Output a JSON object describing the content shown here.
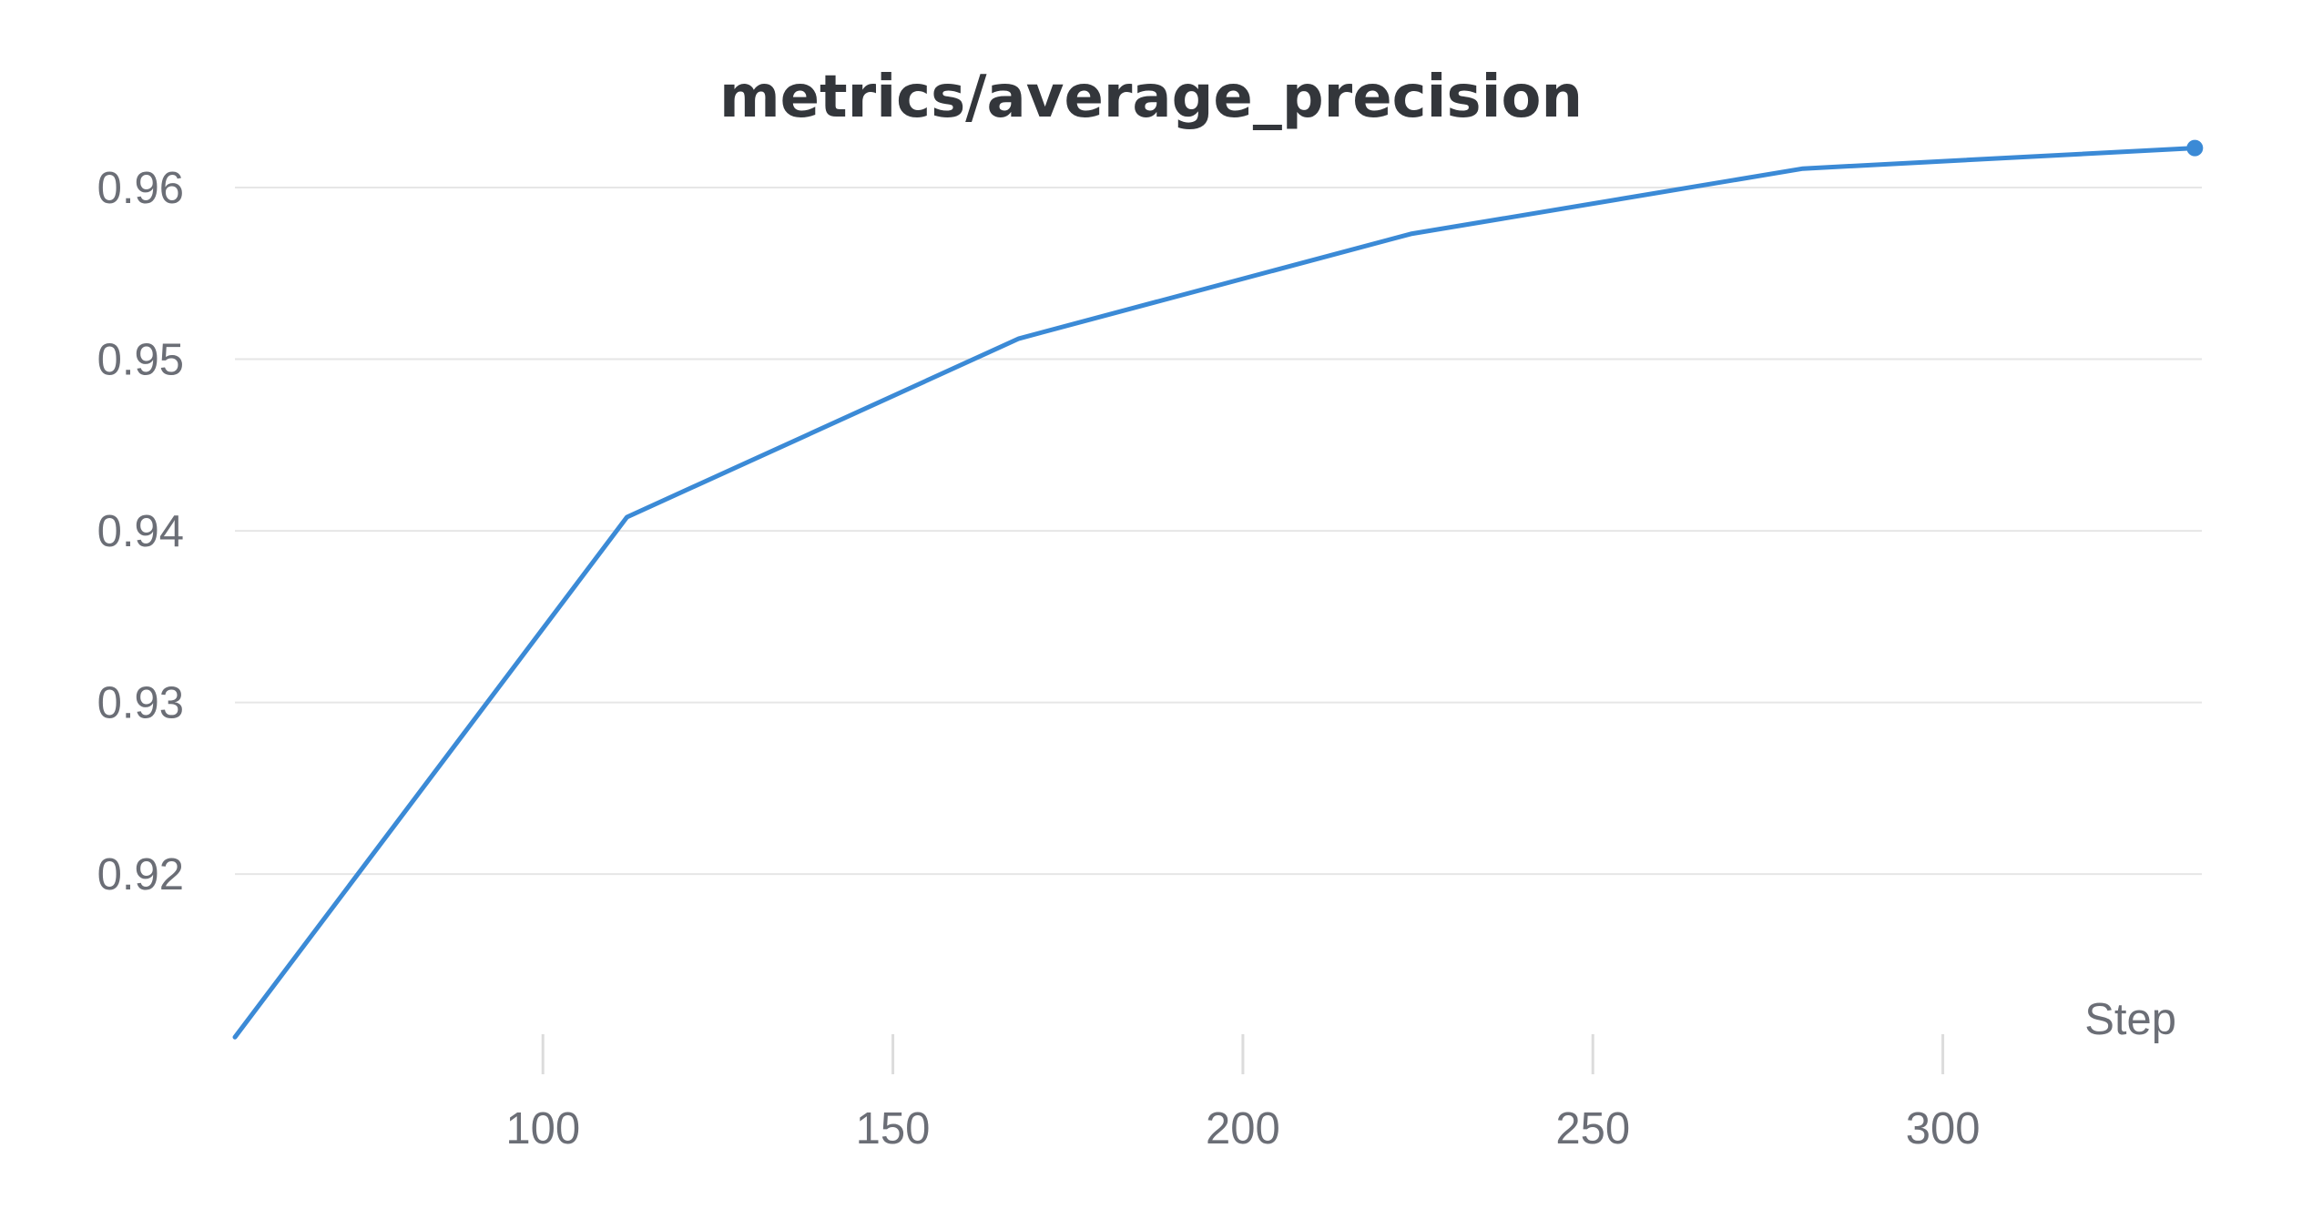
{
  "chart_data": {
    "type": "line",
    "title": "metrics/average_precision",
    "xlabel": "Step",
    "ylabel": "",
    "x_ticks": [
      100,
      150,
      200,
      250,
      300
    ],
    "y_ticks": [
      0.92,
      0.93,
      0.94,
      0.95,
      0.96
    ],
    "y_tick_labels": [
      "0.92",
      "0.93",
      "0.94",
      "0.95",
      "0.96"
    ],
    "x_tick_labels": [
      "100",
      "150",
      "200",
      "250",
      "300"
    ],
    "xlim": [
      56,
      337
    ],
    "ylim": [
      0.9094,
      0.9635
    ],
    "grid": "horizontal",
    "legend": "none",
    "series": [
      {
        "color": "#3b8ad6",
        "x": [
          56,
          112,
          168,
          224,
          280,
          336
        ],
        "y": [
          0.9105,
          0.9408,
          0.9512,
          0.9573,
          0.9611,
          0.9623
        ],
        "end_marker": true
      }
    ]
  }
}
